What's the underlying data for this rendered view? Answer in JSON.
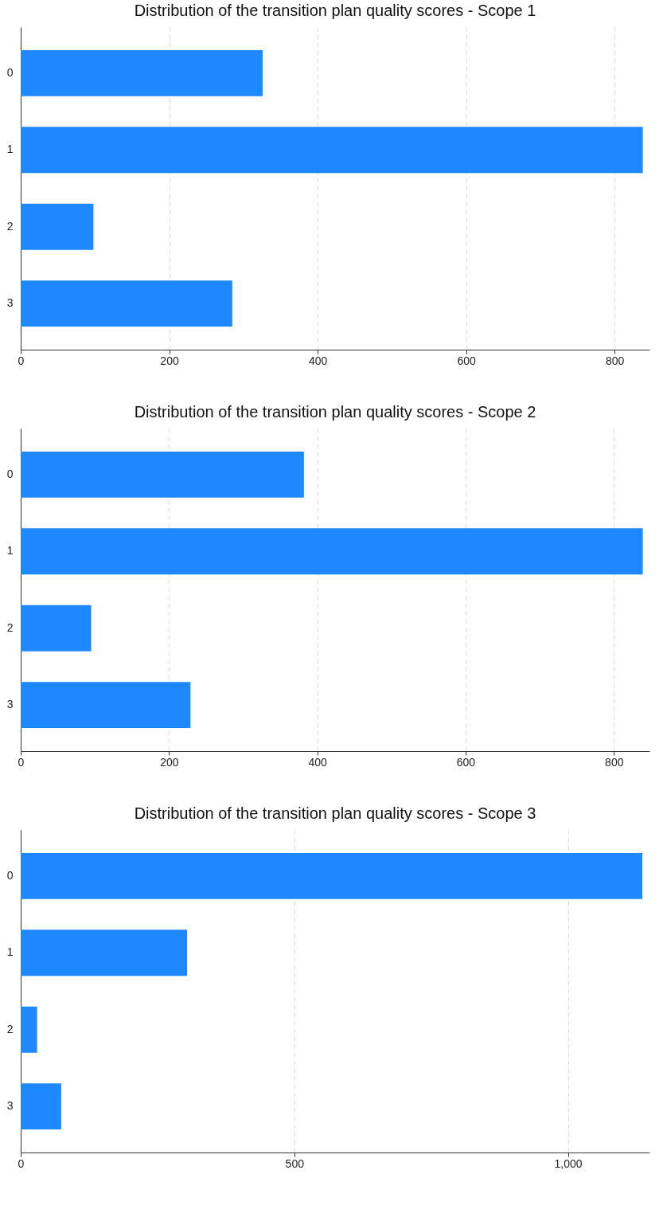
{
  "chart_data": [
    {
      "type": "bar",
      "orientation": "horizontal",
      "title": "Distribution of the transition plan quality scores - Scope 1",
      "categories": [
        "0",
        "1",
        "2",
        "3"
      ],
      "values": [
        326,
        838,
        98,
        285
      ],
      "color": "#1e88ff",
      "xlim": [
        0,
        847
      ],
      "xticks": [
        0,
        200,
        400,
        600,
        800
      ],
      "grid": "x"
    },
    {
      "type": "bar",
      "orientation": "horizontal",
      "title": "Distribution of the transition plan quality scores - Scope 2",
      "categories": [
        "0",
        "1",
        "2",
        "3"
      ],
      "values": [
        382,
        839,
        95,
        229
      ],
      "color": "#1e88ff",
      "xlim": [
        0,
        848
      ],
      "xticks": [
        0,
        200,
        400,
        600,
        800
      ],
      "grid": "x"
    },
    {
      "type": "bar",
      "orientation": "horizontal",
      "title": "Distribution of the transition plan quality scores - Scope 3",
      "categories": [
        "0",
        "1",
        "2",
        "3"
      ],
      "values": [
        1136,
        304,
        30,
        74
      ],
      "color": "#1e88ff",
      "xlim": [
        0,
        1149
      ],
      "xticks": [
        0,
        500,
        {
          "value": 1000,
          "label": "1,000"
        }
      ],
      "grid": "x"
    }
  ]
}
